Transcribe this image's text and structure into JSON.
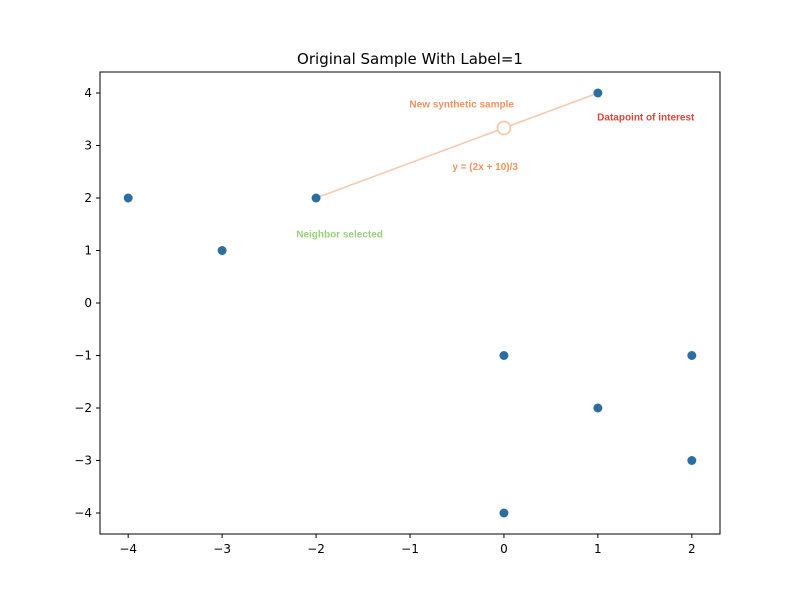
{
  "chart_data": {
    "type": "scatter",
    "title": "Original Sample With Label=1",
    "xlabel": "",
    "ylabel": "",
    "xlim": [
      -4.3,
      2.3
    ],
    "ylim": [
      -4.4,
      4.4
    ],
    "grid": false,
    "xticks": [
      -4,
      -3,
      -2,
      -1,
      0,
      1,
      2
    ],
    "xtick_labels": [
      "−4",
      "−3",
      "−2",
      "−1",
      "0",
      "1",
      "2"
    ],
    "yticks": [
      -4,
      -3,
      -2,
      -1,
      0,
      1,
      2,
      3,
      4
    ],
    "ytick_labels": [
      "−4",
      "−3",
      "−2",
      "−1",
      "0",
      "1",
      "2",
      "3",
      "4"
    ],
    "point_color": "#2c6e9f",
    "points": [
      {
        "x": -4,
        "y": 2
      },
      {
        "x": -3,
        "y": 1
      },
      {
        "x": -2,
        "y": 2
      },
      {
        "x": 0,
        "y": -1
      },
      {
        "x": 0,
        "y": -4
      },
      {
        "x": 1,
        "y": 4
      },
      {
        "x": 1,
        "y": -2
      },
      {
        "x": 2,
        "y": -1
      },
      {
        "x": 2,
        "y": -3
      }
    ],
    "interpolation_line": {
      "from": {
        "x": -2,
        "y": 2
      },
      "to": {
        "x": 1,
        "y": 4
      },
      "color": "#f6c9ae"
    },
    "synthetic_point": {
      "x": 0,
      "y": 3.333,
      "color": "#f6c9ae"
    },
    "annotations": [
      {
        "key": "synthetic",
        "text": "New synthetic sample",
        "x": -0.45,
        "y": 3.72,
        "color": "#f0935f"
      },
      {
        "key": "interest",
        "text": "Datapoint of interest",
        "x": 1.51,
        "y": 3.48,
        "color": "#d9473a"
      },
      {
        "key": "equation",
        "text": "y = (2x + 10)/3",
        "x": -0.2,
        "y": 2.53,
        "color": "#f0935f"
      },
      {
        "key": "neighbor",
        "text": "Neighbor selected",
        "x": -1.75,
        "y": 1.25,
        "color": "#98d27a"
      }
    ]
  }
}
